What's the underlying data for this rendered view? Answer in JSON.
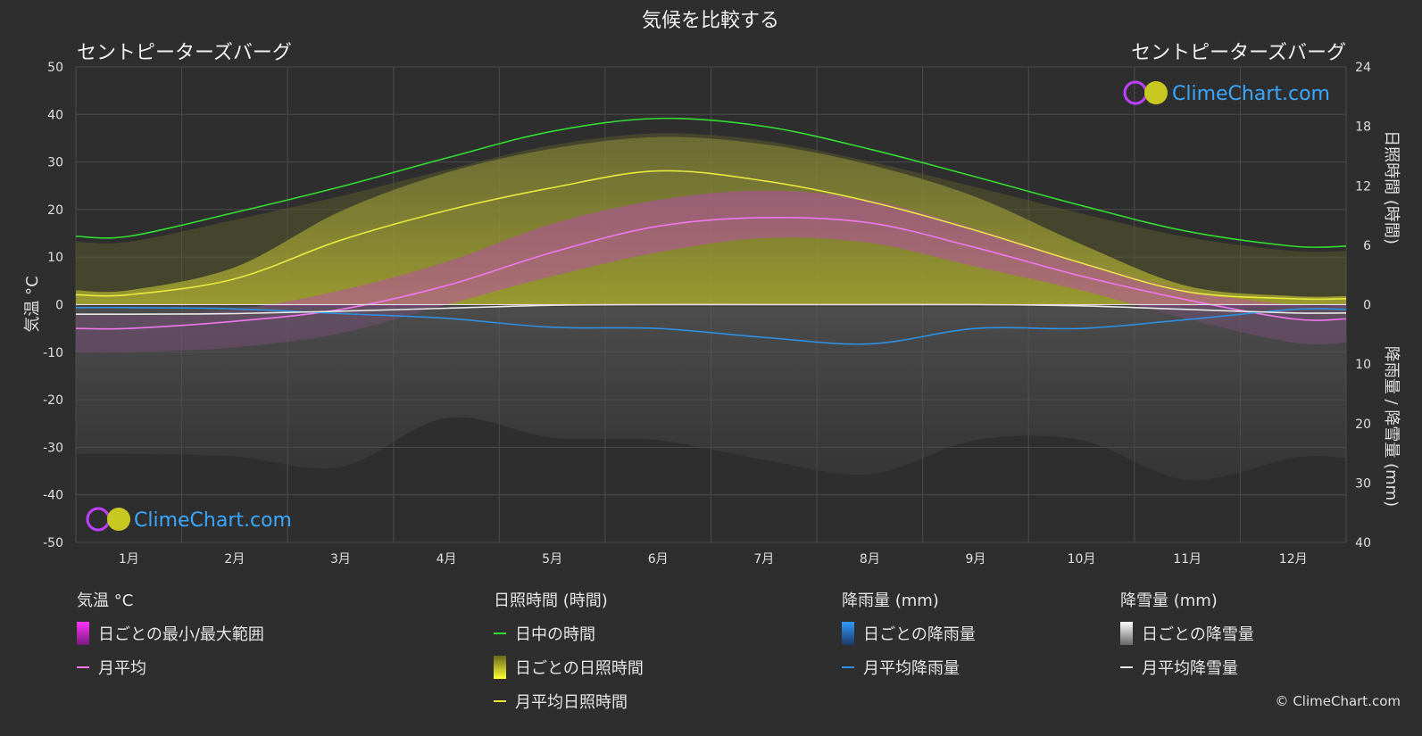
{
  "chart_data": {
    "type": "line",
    "title": "気候を比較する",
    "location_left": "セントピーターズバーグ",
    "location_right": "セントピーターズバーグ",
    "categories": [
      "1月",
      "2月",
      "3月",
      "4月",
      "5月",
      "6月",
      "7月",
      "8月",
      "9月",
      "10月",
      "11月",
      "12月"
    ],
    "left_axis": {
      "label": "気温 °C",
      "range": [
        -50,
        50
      ],
      "ticks": [
        50,
        40,
        30,
        20,
        10,
        0,
        -10,
        -20,
        -30,
        -40,
        -50
      ]
    },
    "right_axis_sun": {
      "label": "日照時間 (時間)",
      "range": [
        0,
        24
      ],
      "ticks": [
        24,
        18,
        12,
        6,
        0
      ]
    },
    "right_axis_precip": {
      "label": "降雨量 / 降雪量 (mm)",
      "range": [
        0,
        40
      ],
      "ticks": [
        0,
        10,
        20,
        30,
        40
      ]
    },
    "grid": true,
    "series": [
      {
        "name": "日中の時間",
        "unit": "時間",
        "color": "#33dd33",
        "values": [
          6.9,
          9.3,
          11.9,
          14.8,
          17.5,
          18.8,
          18.0,
          15.7,
          12.9,
          10.0,
          7.4,
          5.9
        ]
      },
      {
        "name": "月平均日照時間",
        "unit": "時間",
        "color": "#e8e840",
        "values": [
          1.0,
          2.6,
          6.5,
          9.5,
          11.8,
          13.5,
          12.5,
          10.4,
          7.5,
          4.2,
          1.3,
          0.6
        ]
      },
      {
        "name": "月平均",
        "unit": "°C",
        "color": "#ee77ee",
        "values": [
          -5.0,
          -3.5,
          -1.0,
          4.0,
          11.0,
          16.5,
          18.3,
          17.2,
          12.0,
          6.0,
          1.0,
          -3.0
        ]
      },
      {
        "name": "月平均降雨量",
        "unit": "mm",
        "color": "#2f8fe0",
        "values": [
          0.5,
          0.7,
          1.5,
          2.3,
          3.8,
          4.0,
          5.5,
          6.6,
          4.0,
          4.0,
          2.5,
          0.8
        ]
      },
      {
        "name": "月平均降雪量",
        "unit": "mm",
        "color": "#e8e8e8",
        "values": [
          1.6,
          1.5,
          1.1,
          0.6,
          0.1,
          0.0,
          0.0,
          0.0,
          0.0,
          0.2,
          0.8,
          1.4
        ]
      }
    ],
    "daily_bands": {
      "temperature_range": {
        "name": "日ごとの最小/最大範囲",
        "color": "#d040d0",
        "min": [
          -10,
          -9,
          -6,
          0,
          6,
          11,
          14,
          13,
          8,
          3,
          -3,
          -8
        ],
        "max": [
          -2,
          -1,
          3,
          9,
          17,
          22,
          24,
          22,
          16,
          9,
          3,
          0
        ]
      },
      "sunshine": {
        "name": "日ごとの日照時間",
        "color": "#b8b830",
        "values": [
          1.0,
          2.6,
          6.5,
          9.5,
          11.8,
          13.5,
          12.5,
          10.4,
          7.5,
          4.2,
          1.3,
          0.6
        ]
      },
      "rain": {
        "name": "日ごとの降雨量",
        "color": "#2a6ab0"
      },
      "snow": {
        "name": "日ごとの降雪量",
        "color": "#9a9a9a"
      }
    }
  },
  "legend": {
    "temperature": {
      "title": "気温 °C",
      "range": "日ごとの最小/最大範囲",
      "avg": "月平均"
    },
    "sunshine": {
      "title": "日照時間 (時間)",
      "daylight": "日中の時間",
      "daily": "日ごとの日照時間",
      "avg": "月平均日照時間"
    },
    "rain": {
      "title": "降雨量 (mm)",
      "daily": "日ごとの降雨量",
      "avg": "月平均降雨量"
    },
    "snow": {
      "title": "降雪量 (mm)",
      "daily": "日ごとの降雪量",
      "avg": "月平均降雪量"
    }
  },
  "brand": "ClimeChart.com",
  "copyright": "© ClimeChart.com"
}
